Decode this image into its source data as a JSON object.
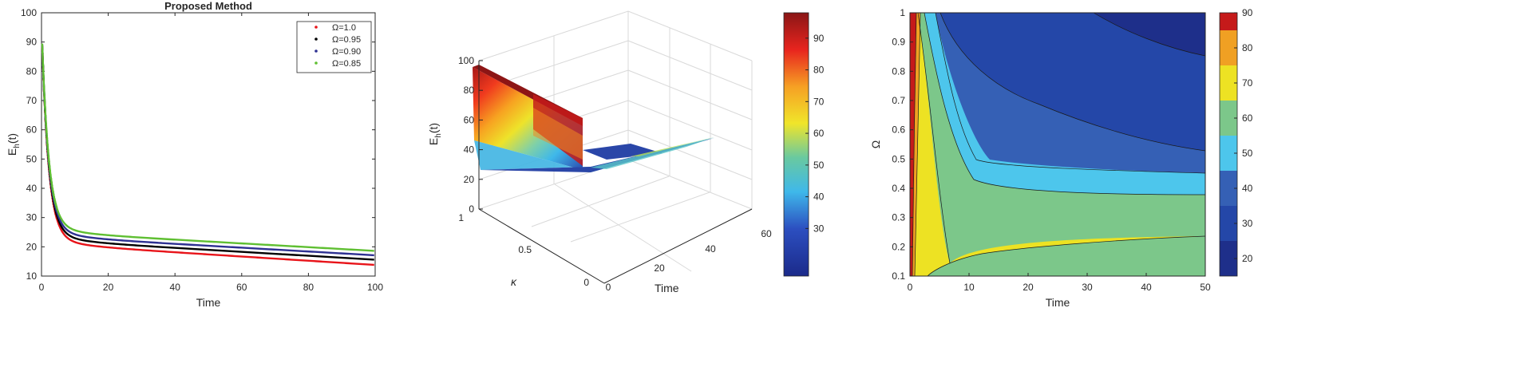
{
  "chart_data": [
    {
      "type": "line",
      "title": "Proposed Method",
      "xlabel": "Time",
      "ylabel_base": "E",
      "ylabel_sub": "h",
      "ylabel_tail": "(t)",
      "xlim": [
        0,
        100
      ],
      "ylim": [
        10,
        100
      ],
      "xticks": [
        "0",
        "20",
        "40",
        "60",
        "80",
        "100"
      ],
      "yticks": [
        "10",
        "20",
        "30",
        "40",
        "50",
        "60",
        "70",
        "80",
        "90",
        "100"
      ],
      "legend_position": "top-right",
      "series": [
        {
          "name": "Ω=1.0",
          "color": "#e8141a",
          "plateau": 21.0,
          "final": 13.8
        },
        {
          "name": "Ω=0.95",
          "color": "#000000",
          "plateau": 22.3,
          "final": 15.6
        },
        {
          "name": "Ω=0.90",
          "color": "#2e3192",
          "plateau": 23.6,
          "final": 17.1
        },
        {
          "name": "Ω=0.85",
          "color": "#5fbf32",
          "plateau": 25.0,
          "final": 18.6
        }
      ]
    },
    {
      "type": "surface",
      "xlabel": "Time",
      "ylabel": "κ",
      "zlabel_base": "E",
      "zlabel_sub": "h",
      "zlabel_tail": "(t)",
      "xticks": [
        "0",
        "20",
        "40",
        "60"
      ],
      "yticks": [
        "0",
        "0.5",
        "1"
      ],
      "zticks": [
        "0",
        "20",
        "40",
        "60",
        "80",
        "100"
      ],
      "colorbar_ticks": [
        "30",
        "40",
        "50",
        "60",
        "70",
        "80",
        "90"
      ],
      "colorbar_range": [
        15,
        98
      ],
      "colormap": "jet"
    },
    {
      "type": "contour",
      "xlabel": "Time",
      "ylabel": "Ω",
      "xlim": [
        0,
        50
      ],
      "ylim": [
        0.1,
        1
      ],
      "xticks": [
        "0",
        "10",
        "20",
        "30",
        "40",
        "50"
      ],
      "yticks": [
        "0.1",
        "0.2",
        "0.3",
        "0.4",
        "0.5",
        "0.6",
        "0.7",
        "0.8",
        "0.9",
        "1"
      ],
      "colorbar_ticks": [
        "20",
        "30",
        "40",
        "50",
        "60",
        "70",
        "80",
        "90"
      ],
      "colorbar_range": [
        15,
        90
      ],
      "levels": [
        {
          "value": 20,
          "color": "#1e2f8a"
        },
        {
          "value": 30,
          "color": "#2447a8"
        },
        {
          "value": 40,
          "color": "#3560b5"
        },
        {
          "value": 50,
          "color": "#4dc6ec"
        },
        {
          "value": 60,
          "color": "#7cc78a"
        },
        {
          "value": 70,
          "color": "#ede223"
        },
        {
          "value": 80,
          "color": "#f0a023"
        },
        {
          "value": 90,
          "color": "#c51a1a"
        }
      ]
    }
  ]
}
